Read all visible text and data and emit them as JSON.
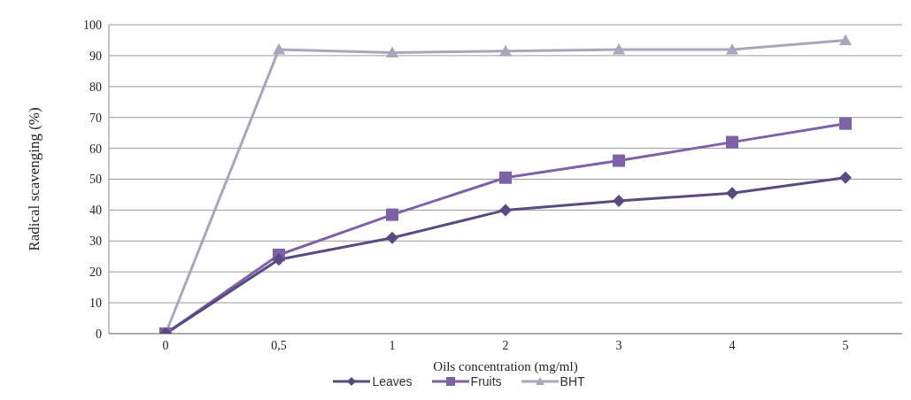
{
  "chart_data": {
    "type": "line",
    "xlabel": "Oils concentration (mg/ml)",
    "ylabel": "Radical  scavenging (%)",
    "categories": [
      "0",
      "0,5",
      "1",
      "2",
      "3",
      "4",
      "5"
    ],
    "series": [
      {
        "name": "Leaves",
        "color": "#5b4a80",
        "marker": "diamond",
        "values": [
          0,
          24,
          31,
          40,
          43,
          45.5,
          50.5
        ]
      },
      {
        "name": "Fruits",
        "color": "#7d62a8",
        "marker": "square",
        "values": [
          0,
          25.5,
          38.5,
          50.5,
          56,
          62,
          68
        ]
      },
      {
        "name": "BHT",
        "color": "#aaa5bd",
        "marker": "triangle",
        "values": [
          0,
          92,
          91,
          91.5,
          92,
          92,
          95
        ]
      }
    ],
    "ylim": [
      0,
      100
    ],
    "yticks": [
      0,
      10,
      20,
      30,
      40,
      50,
      60,
      70,
      80,
      90,
      100
    ],
    "grid": "y",
    "legend": "bottom"
  }
}
